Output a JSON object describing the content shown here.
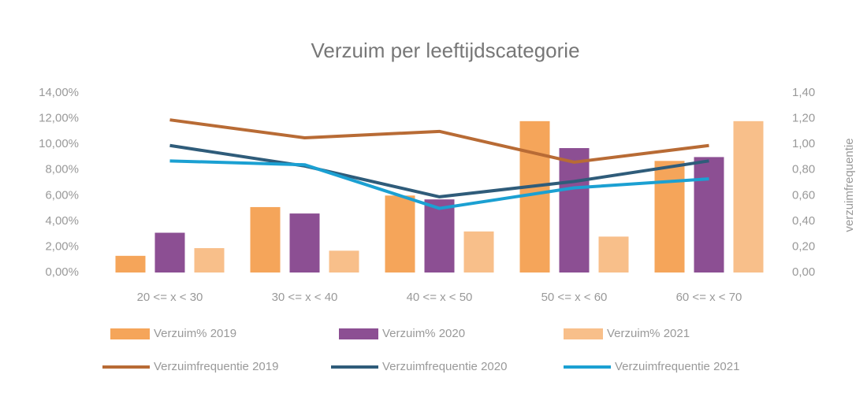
{
  "chart_data": {
    "type": "bar",
    "title": "Verzuim per leeftijdscategorie",
    "y2label": "verzuimfrequentie",
    "categories": [
      "20 <= x < 30",
      "30 <= x < 40",
      "40 <= x < 50",
      "50 <= x < 60",
      "60 <= x < 70"
    ],
    "ylim": [
      0,
      14
    ],
    "yticks": [
      {
        "value": 0,
        "label": "0,00%"
      },
      {
        "value": 2,
        "label": "2,00%"
      },
      {
        "value": 4,
        "label": "4,00%"
      },
      {
        "value": 6,
        "label": "6,00%"
      },
      {
        "value": 8,
        "label": "8,00%"
      },
      {
        "value": 10,
        "label": "10,00%"
      },
      {
        "value": 12,
        "label": "12,00%"
      },
      {
        "value": 14,
        "label": "14,00%"
      }
    ],
    "y2lim": [
      0,
      1.4
    ],
    "y2ticks": [
      {
        "value": 0,
        "label": "0,00"
      },
      {
        "value": 0.2,
        "label": "0,20"
      },
      {
        "value": 0.4,
        "label": "0,40"
      },
      {
        "value": 0.6,
        "label": "0,60"
      },
      {
        "value": 0.8,
        "label": "0,80"
      },
      {
        "value": 1.0,
        "label": "1,00"
      },
      {
        "value": 1.2,
        "label": "1,20"
      },
      {
        "value": 1.4,
        "label": "1,40"
      }
    ],
    "series": [
      {
        "name": "Verzuim% 2019",
        "type": "bar",
        "color": "#f5a55a",
        "values": [
          1.3,
          5.1,
          6.0,
          11.8,
          8.7
        ]
      },
      {
        "name": "Verzuim% 2020",
        "type": "bar",
        "color": "#8c4f93",
        "values": [
          3.1,
          4.6,
          5.7,
          9.7,
          9.0
        ]
      },
      {
        "name": "Verzuim% 2021",
        "type": "bar",
        "color": "#f8bf8a",
        "values": [
          1.9,
          1.7,
          3.2,
          2.8,
          11.8
        ]
      },
      {
        "name": "Verzuimfrequentie 2019",
        "type": "line",
        "axis": "y2",
        "color": "#b86b35",
        "values": [
          1.19,
          1.05,
          1.1,
          0.86,
          0.99
        ]
      },
      {
        "name": "Verzuimfrequentie 2020",
        "type": "line",
        "axis": "y2",
        "color": "#2f5c7a",
        "values": [
          0.99,
          0.83,
          0.59,
          0.71,
          0.87
        ]
      },
      {
        "name": "Verzuimfrequentie 2021",
        "type": "line",
        "axis": "y2",
        "color": "#1ba0d2",
        "values": [
          0.87,
          0.84,
          0.5,
          0.66,
          0.73
        ]
      }
    ]
  }
}
